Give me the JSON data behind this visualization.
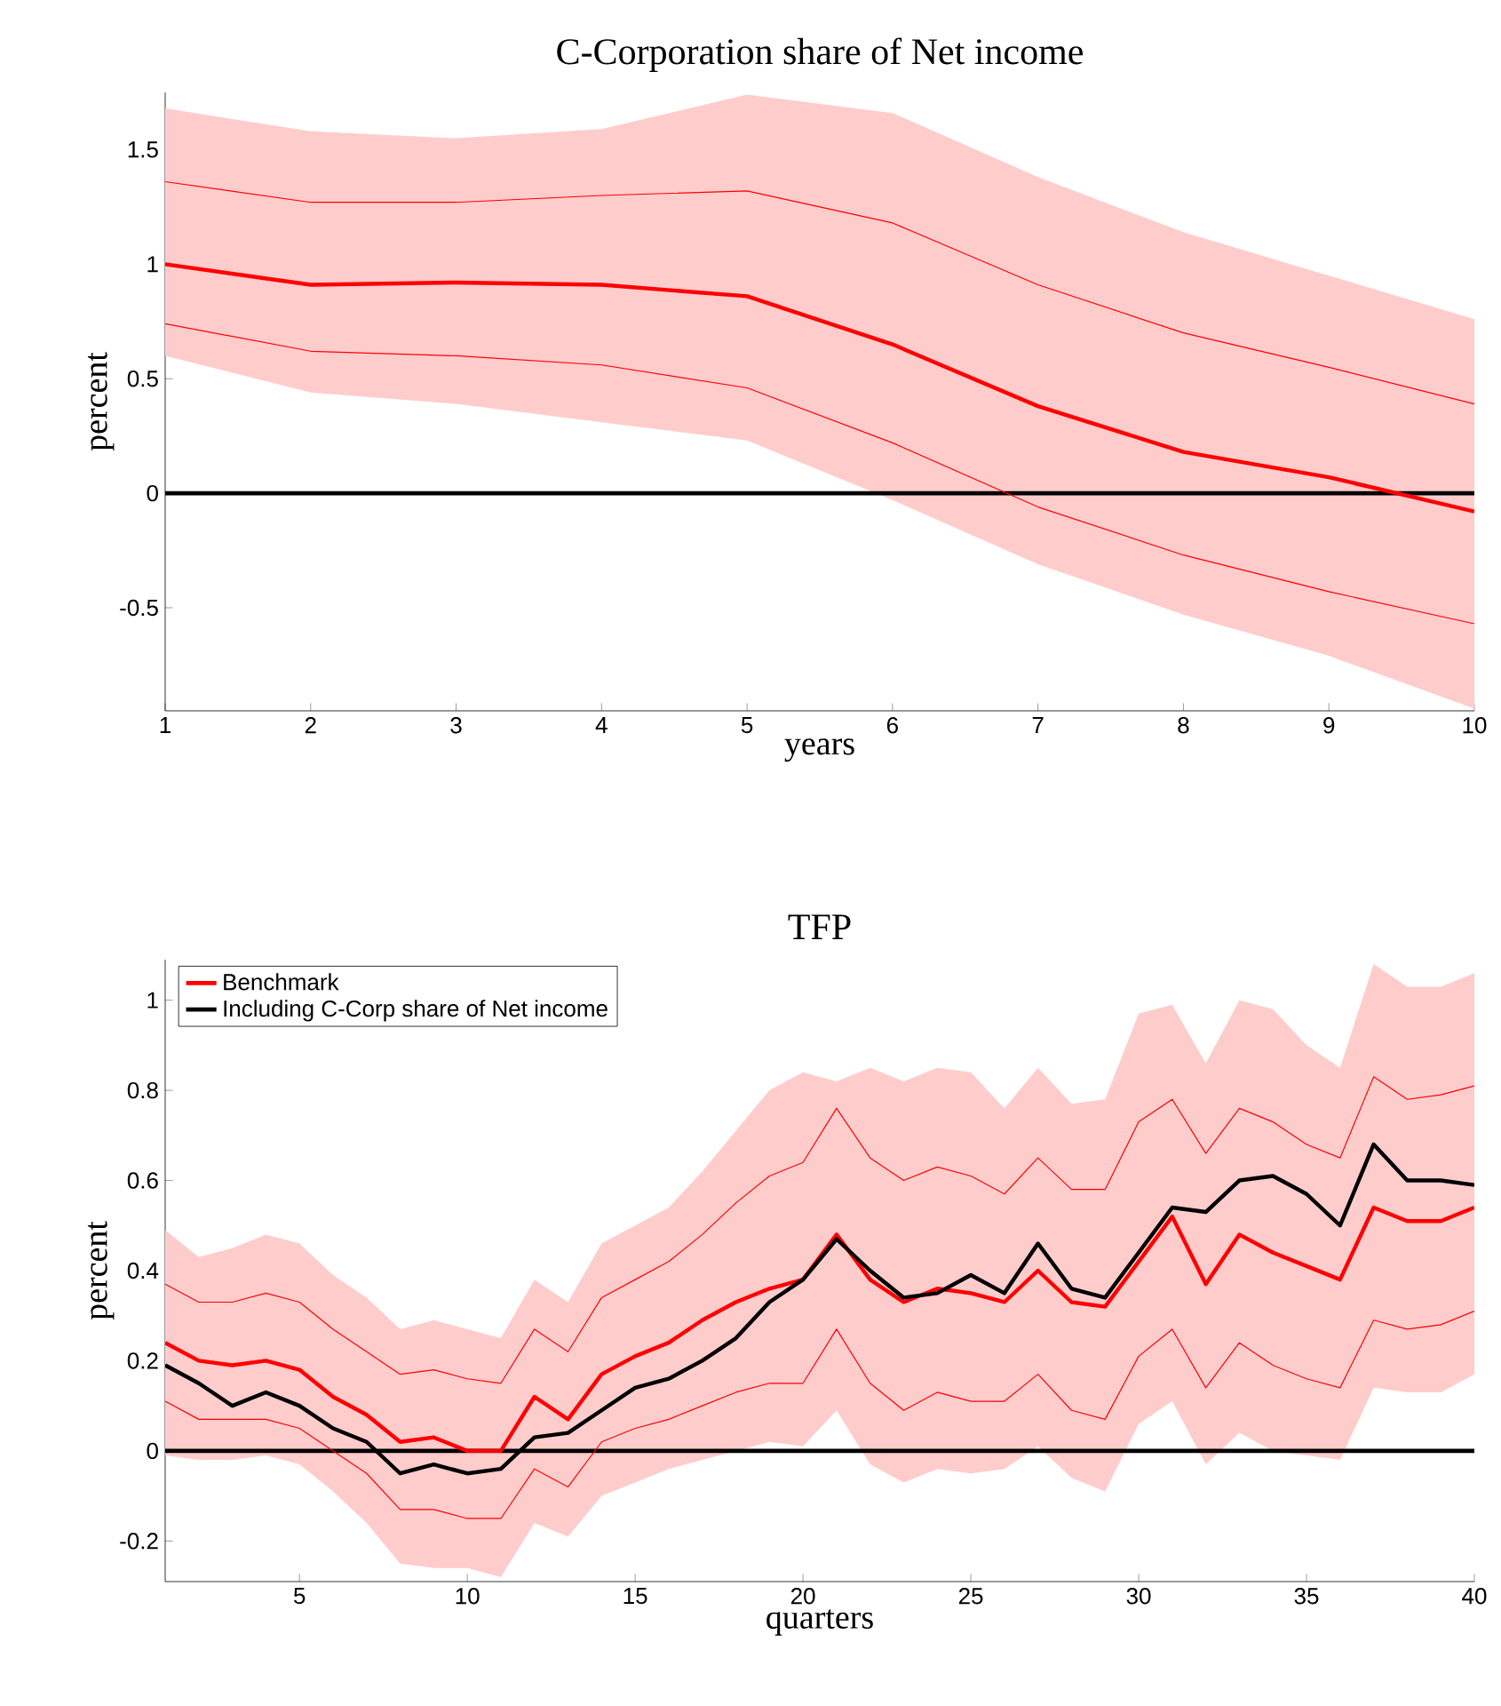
{
  "chart_data": [
    {
      "type": "line",
      "title": "C-Corporation share of Net income",
      "xlabel": "years",
      "ylabel": "percent",
      "x": [
        1,
        2,
        3,
        4,
        5,
        6,
        7,
        8,
        9,
        10
      ],
      "xlim": [
        1,
        10
      ],
      "ylim": [
        -0.95,
        1.75
      ],
      "xticks": [
        1,
        2,
        3,
        4,
        5,
        6,
        7,
        8,
        9,
        10
      ],
      "yticks": [
        -0.5,
        0,
        0.5,
        1,
        1.5
      ],
      "series": [
        {
          "color": "#ff0000",
          "values": [
            1.0,
            0.91,
            0.92,
            0.91,
            0.86,
            0.65,
            0.38,
            0.18,
            0.07,
            -0.08
          ],
          "lower": [
            0.6,
            0.44,
            0.39,
            0.31,
            0.23,
            -0.03,
            -0.31,
            -0.53,
            -0.71,
            -0.94
          ],
          "upper": [
            1.68,
            1.58,
            1.55,
            1.59,
            1.74,
            1.66,
            1.38,
            1.14,
            0.95,
            0.76
          ]
        },
        {
          "color": "#ff0000",
          "values": [
            1.36,
            1.27,
            1.27,
            1.3,
            1.32,
            1.18,
            0.91,
            0.7,
            0.55,
            0.39
          ]
        },
        {
          "color": "#ff0000",
          "values": [
            0.74,
            0.62,
            0.6,
            0.56,
            0.46,
            0.22,
            -0.06,
            -0.27,
            -0.43,
            -0.57
          ]
        }
      ],
      "ref_lines": [
        {
          "axis": "y",
          "value": 0,
          "color": "#000000"
        }
      ]
    },
    {
      "type": "line",
      "title": "TFP",
      "xlabel": "quarters",
      "ylabel": "percent",
      "legend": "top left",
      "x": [
        1,
        2,
        3,
        4,
        5,
        6,
        7,
        8,
        9,
        10,
        11,
        12,
        13,
        14,
        15,
        16,
        17,
        18,
        19,
        20,
        21,
        22,
        23,
        24,
        25,
        26,
        27,
        28,
        29,
        30,
        31,
        32,
        33,
        34,
        35,
        36,
        37,
        38,
        39,
        40
      ],
      "xlim": [
        1,
        40
      ],
      "ylim": [
        -0.29,
        1.09
      ],
      "xticks": [
        5,
        10,
        15,
        20,
        25,
        30,
        35,
        40
      ],
      "yticks": [
        -0.2,
        0,
        0.2,
        0.4,
        0.6,
        0.8,
        1
      ],
      "series": [
        {
          "name": "Benchmark",
          "color": "#ff0000",
          "values": [
            0.24,
            0.2,
            0.19,
            0.2,
            0.18,
            0.12,
            0.08,
            0.02,
            0.03,
            0.0,
            0.0,
            0.12,
            0.07,
            0.17,
            0.21,
            0.24,
            0.29,
            0.33,
            0.36,
            0.38,
            0.48,
            0.38,
            0.33,
            0.36,
            0.35,
            0.33,
            0.4,
            0.33,
            0.32,
            0.42,
            0.52,
            0.37,
            0.48,
            0.44,
            0.41,
            0.38,
            0.54,
            0.51,
            0.51,
            0.54
          ],
          "lower": [
            -0.01,
            -0.02,
            -0.02,
            -0.01,
            -0.03,
            -0.09,
            -0.16,
            -0.25,
            -0.26,
            -0.26,
            -0.28,
            -0.16,
            -0.19,
            -0.1,
            -0.07,
            -0.04,
            -0.02,
            0.0,
            0.02,
            0.01,
            0.09,
            -0.03,
            -0.07,
            -0.04,
            -0.05,
            -0.04,
            0.01,
            -0.06,
            -0.09,
            0.06,
            0.11,
            -0.03,
            0.04,
            0.0,
            -0.01,
            -0.02,
            0.14,
            0.13,
            0.13,
            0.17
          ],
          "upper": [
            0.49,
            0.43,
            0.45,
            0.48,
            0.46,
            0.39,
            0.34,
            0.27,
            0.29,
            0.27,
            0.25,
            0.38,
            0.33,
            0.46,
            0.5,
            0.54,
            0.62,
            0.71,
            0.8,
            0.84,
            0.82,
            0.85,
            0.82,
            0.85,
            0.84,
            0.76,
            0.85,
            0.77,
            0.78,
            0.97,
            0.99,
            0.86,
            1.0,
            0.98,
            0.9,
            0.85,
            1.08,
            1.03,
            1.03,
            1.06
          ]
        },
        {
          "color": "#ff0000",
          "values": [
            0.37,
            0.33,
            0.33,
            0.35,
            0.33,
            0.27,
            0.22,
            0.17,
            0.18,
            0.16,
            0.15,
            0.27,
            0.22,
            0.34,
            0.38,
            0.42,
            0.48,
            0.55,
            0.61,
            0.64,
            0.76,
            0.65,
            0.6,
            0.63,
            0.61,
            0.57,
            0.65,
            0.58,
            0.58,
            0.73,
            0.78,
            0.66,
            0.76,
            0.73,
            0.68,
            0.65,
            0.83,
            0.78,
            0.79,
            0.81
          ]
        },
        {
          "color": "#ff0000",
          "values": [
            0.11,
            0.07,
            0.07,
            0.07,
            0.05,
            0.0,
            -0.05,
            -0.13,
            -0.13,
            -0.15,
            -0.15,
            -0.04,
            -0.08,
            0.02,
            0.05,
            0.07,
            0.1,
            0.13,
            0.15,
            0.15,
            0.27,
            0.15,
            0.09,
            0.13,
            0.11,
            0.11,
            0.17,
            0.09,
            0.07,
            0.21,
            0.27,
            0.14,
            0.24,
            0.19,
            0.16,
            0.14,
            0.29,
            0.27,
            0.28,
            0.31
          ]
        },
        {
          "name": "Including C-Corp share of Net income",
          "color": "#000000",
          "values": [
            0.19,
            0.15,
            0.1,
            0.13,
            0.1,
            0.05,
            0.02,
            -0.05,
            -0.03,
            -0.05,
            -0.04,
            0.03,
            0.04,
            0.09,
            0.14,
            0.16,
            0.2,
            0.25,
            0.33,
            0.38,
            0.47,
            0.4,
            0.34,
            0.35,
            0.39,
            0.35,
            0.46,
            0.36,
            0.34,
            0.44,
            0.54,
            0.53,
            0.6,
            0.61,
            0.57,
            0.5,
            0.68,
            0.6,
            0.6,
            0.59
          ]
        }
      ],
      "ref_lines": [
        {
          "axis": "y",
          "value": 0,
          "color": "#000000"
        }
      ]
    }
  ]
}
